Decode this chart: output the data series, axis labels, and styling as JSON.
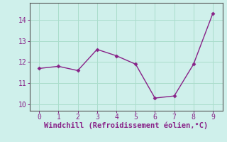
{
  "x": [
    0,
    1,
    2,
    3,
    4,
    5,
    6,
    7,
    8,
    9
  ],
  "y": [
    11.7,
    11.8,
    11.6,
    12.6,
    12.3,
    11.9,
    10.3,
    10.4,
    11.9,
    14.3
  ],
  "line_color": "#882288",
  "marker": "D",
  "marker_size": 2.5,
  "line_width": 1.0,
  "xlabel": "Windchill (Refroidissement éolien,°C)",
  "xlabel_color": "#882288",
  "xlabel_fontsize": 7.5,
  "background_color": "#cff0eb",
  "grid_color": "#aaddcc",
  "tick_color": "#882288",
  "ylim": [
    9.7,
    14.8
  ],
  "xlim": [
    -0.5,
    9.5
  ],
  "yticks": [
    10,
    11,
    12,
    13,
    14
  ],
  "xticks": [
    0,
    1,
    2,
    3,
    4,
    5,
    6,
    7,
    8,
    9
  ],
  "tick_fontsize": 7,
  "figsize": [
    3.2,
    2.0
  ],
  "dpi": 100
}
